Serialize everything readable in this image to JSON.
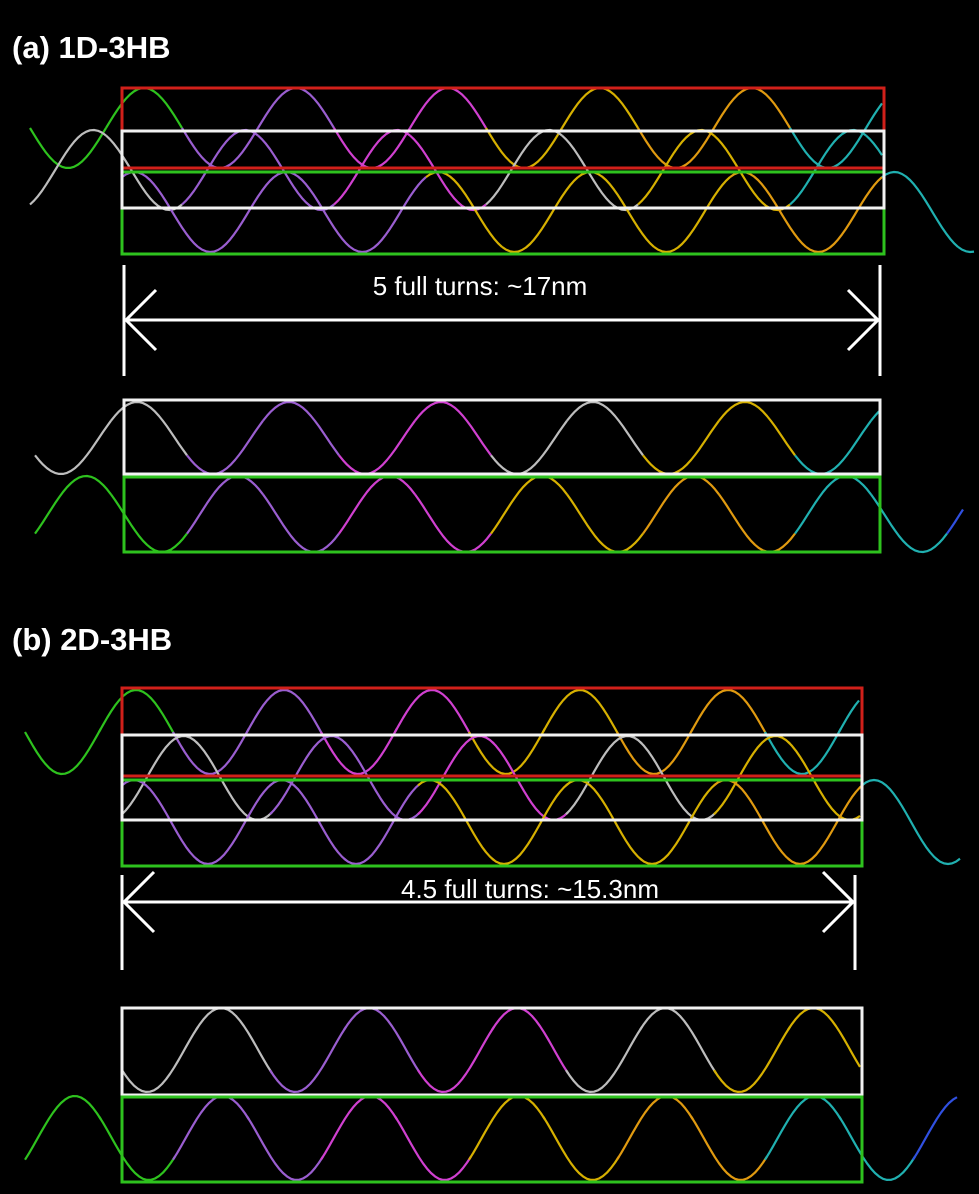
{
  "panel_a": {
    "title": "(a) 1D-3HB",
    "measure": "5 full turns: ~17nm"
  },
  "panel_b": {
    "title": "(b) 2D-3HB",
    "measure": "4.5 full turns: ~15.3nm"
  }
}
